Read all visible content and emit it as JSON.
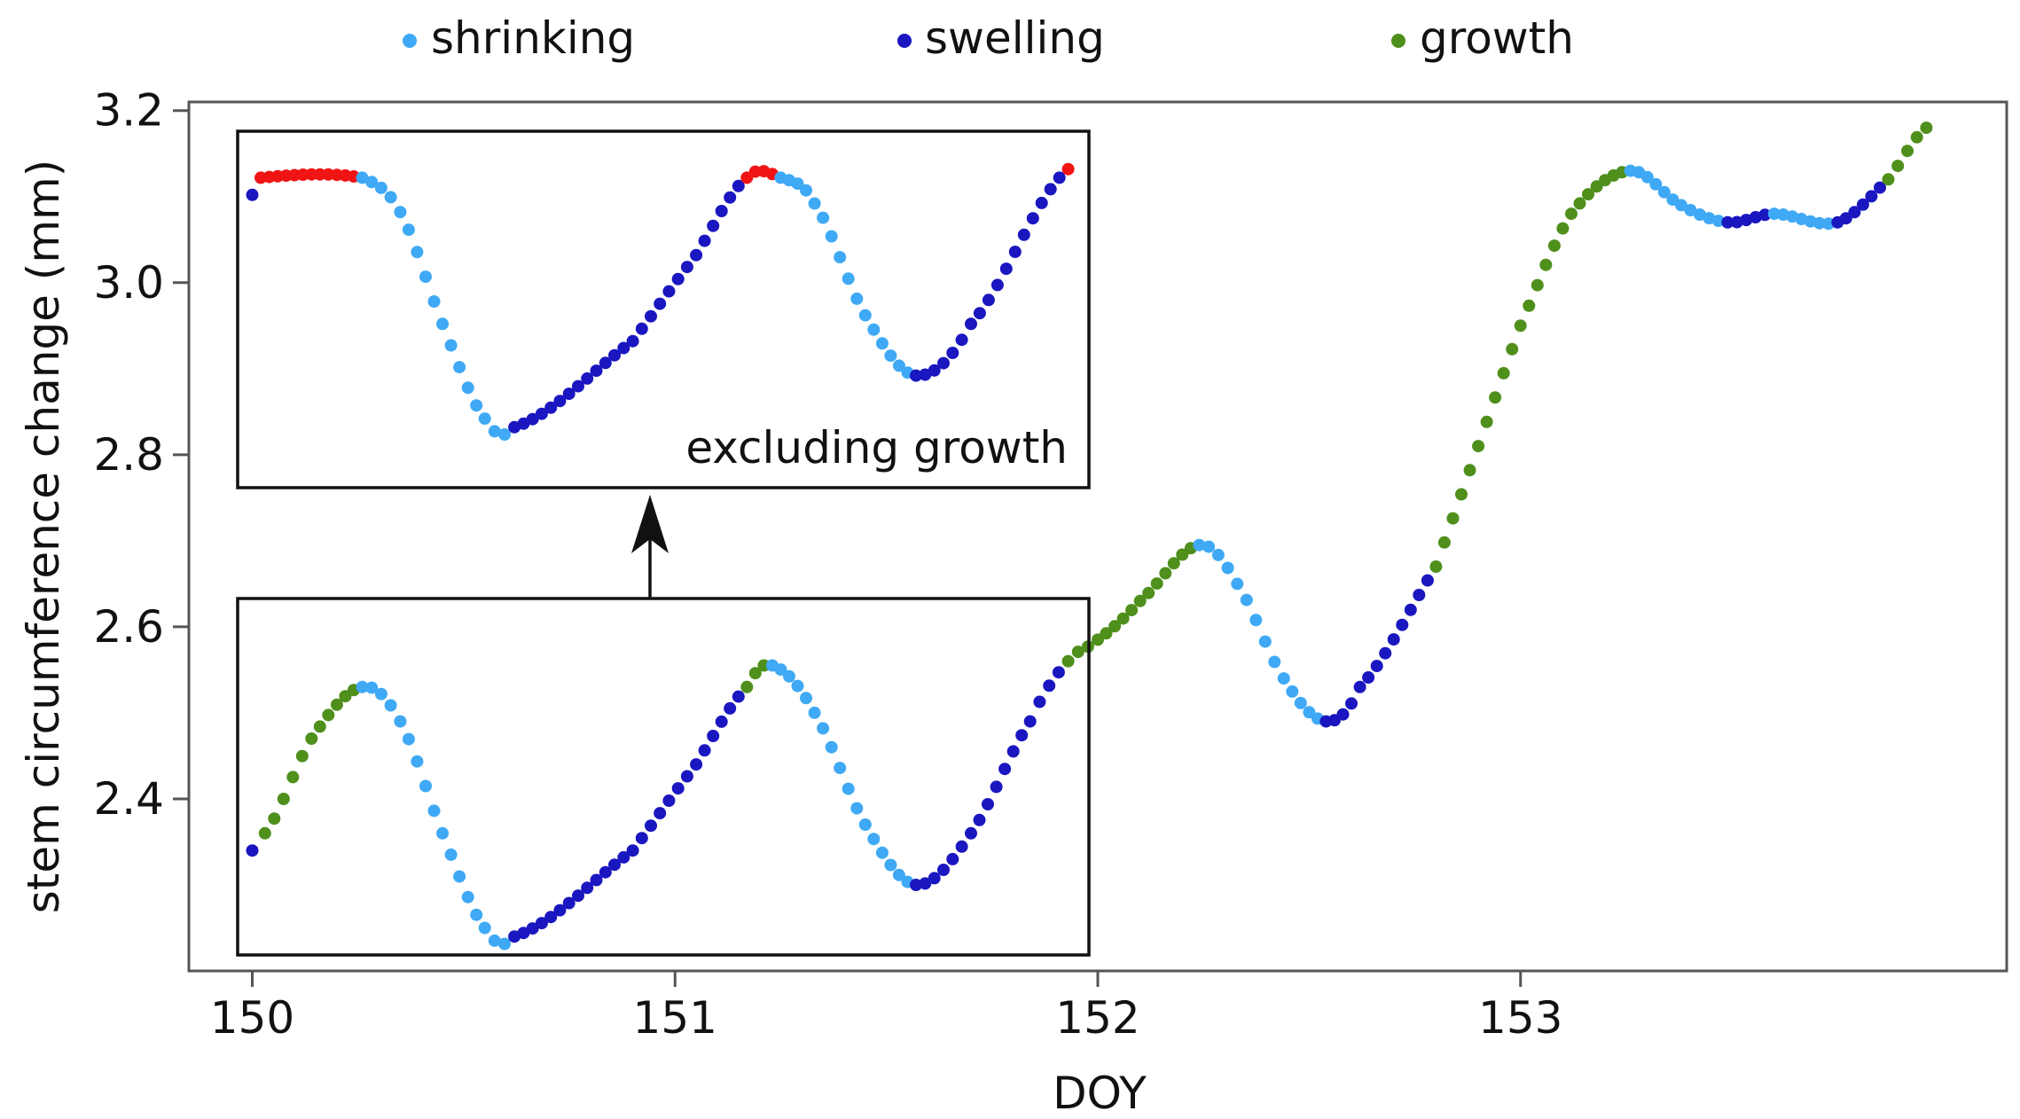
{
  "chart_data": {
    "type": "scatter",
    "title": "",
    "xlabel": "DOY",
    "ylabel": "stem circumference change (mm)",
    "xlim": [
      149.85,
      154.15
    ],
    "ylim": [
      2.2,
      3.21
    ],
    "xticks": [
      150,
      151,
      152,
      153
    ],
    "yticks": [
      2.4,
      2.6,
      2.8,
      3.0,
      3.2
    ],
    "xtick_labels": [
      "150",
      "151",
      "152",
      "153"
    ],
    "ytick_labels": [
      "2.4",
      "2.6",
      "2.8",
      "3.0",
      "3.2"
    ],
    "legend": {
      "placement": "top",
      "entries": [
        {
          "label": "shrinking",
          "color": "#3fa9f5"
        },
        {
          "label": "swelling",
          "color": "#1a16c0"
        },
        {
          "label": "growth",
          "color": "#4f8f1c"
        }
      ]
    },
    "colors": {
      "shrinking": "#3fa9f5",
      "swelling": "#1a16c0",
      "growth": "#4f8f1c",
      "excluded": "#f01414"
    },
    "main_series_keypoints": [
      {
        "x": 150.0,
        "y": 2.34,
        "phase": "swelling"
      },
      {
        "x": 150.03,
        "y": 2.36,
        "phase": "growth"
      },
      {
        "x": 150.14,
        "y": 2.47,
        "phase": "growth"
      },
      {
        "x": 150.26,
        "y": 2.53,
        "phase": "shrinking"
      },
      {
        "x": 150.35,
        "y": 2.49,
        "phase": "shrinking"
      },
      {
        "x": 150.45,
        "y": 2.36,
        "phase": "shrinking"
      },
      {
        "x": 150.55,
        "y": 2.25,
        "phase": "shrinking"
      },
      {
        "x": 150.62,
        "y": 2.24,
        "phase": "swelling"
      },
      {
        "x": 150.9,
        "y": 2.34,
        "phase": "swelling"
      },
      {
        "x": 151.05,
        "y": 2.44,
        "phase": "swelling"
      },
      {
        "x": 151.17,
        "y": 2.53,
        "phase": "growth"
      },
      {
        "x": 151.23,
        "y": 2.555,
        "phase": "shrinking"
      },
      {
        "x": 151.33,
        "y": 2.5,
        "phase": "shrinking"
      },
      {
        "x": 151.45,
        "y": 2.37,
        "phase": "shrinking"
      },
      {
        "x": 151.57,
        "y": 2.3,
        "phase": "swelling"
      },
      {
        "x": 151.7,
        "y": 2.36,
        "phase": "swelling"
      },
      {
        "x": 151.84,
        "y": 2.49,
        "phase": "swelling"
      },
      {
        "x": 151.93,
        "y": 2.56,
        "phase": "growth"
      },
      {
        "x": 152.0,
        "y": 2.585,
        "phase": "growth"
      },
      {
        "x": 152.1,
        "y": 2.63,
        "phase": "growth"
      },
      {
        "x": 152.24,
        "y": 2.695,
        "phase": "shrinking"
      },
      {
        "x": 152.33,
        "y": 2.65,
        "phase": "shrinking"
      },
      {
        "x": 152.44,
        "y": 2.54,
        "phase": "shrinking"
      },
      {
        "x": 152.54,
        "y": 2.49,
        "phase": "swelling"
      },
      {
        "x": 152.62,
        "y": 2.53,
        "phase": "swelling"
      },
      {
        "x": 152.8,
        "y": 2.67,
        "phase": "growth"
      },
      {
        "x": 152.9,
        "y": 2.81,
        "phase": "growth"
      },
      {
        "x": 153.0,
        "y": 2.95,
        "phase": "growth"
      },
      {
        "x": 153.12,
        "y": 3.08,
        "phase": "growth"
      },
      {
        "x": 153.26,
        "y": 3.13,
        "phase": "shrinking"
      },
      {
        "x": 153.38,
        "y": 3.09,
        "phase": "shrinking"
      },
      {
        "x": 153.49,
        "y": 3.07,
        "phase": "swelling"
      },
      {
        "x": 153.6,
        "y": 3.08,
        "phase": "shrinking"
      },
      {
        "x": 153.75,
        "y": 3.07,
        "phase": "swelling"
      },
      {
        "x": 153.87,
        "y": 3.12,
        "phase": "growth"
      },
      {
        "x": 153.96,
        "y": 3.18,
        "phase": "growth"
      }
    ],
    "inset": {
      "label": "excluding growth",
      "description_series": "same DOY 150-152 segment with growth removed",
      "keypoints": [
        {
          "x": 150.0,
          "y": 2.34,
          "phase": "swelling"
        },
        {
          "x": 150.02,
          "y": 2.36,
          "phase": "excluded"
        },
        {
          "x": 150.26,
          "y": 2.36,
          "phase": "shrinking"
        },
        {
          "x": 150.35,
          "y": 2.32,
          "phase": "shrinking"
        },
        {
          "x": 150.45,
          "y": 2.19,
          "phase": "shrinking"
        },
        {
          "x": 150.55,
          "y": 2.08,
          "phase": "shrinking"
        },
        {
          "x": 150.62,
          "y": 2.07,
          "phase": "swelling"
        },
        {
          "x": 150.9,
          "y": 2.17,
          "phase": "swelling"
        },
        {
          "x": 151.05,
          "y": 2.27,
          "phase": "swelling"
        },
        {
          "x": 151.17,
          "y": 2.36,
          "phase": "excluded"
        },
        {
          "x": 151.25,
          "y": 2.36,
          "phase": "shrinking"
        },
        {
          "x": 151.33,
          "y": 2.33,
          "phase": "shrinking"
        },
        {
          "x": 151.45,
          "y": 2.2,
          "phase": "shrinking"
        },
        {
          "x": 151.57,
          "y": 2.13,
          "phase": "swelling"
        },
        {
          "x": 151.7,
          "y": 2.19,
          "phase": "swelling"
        },
        {
          "x": 151.93,
          "y": 2.37,
          "phase": "excluded"
        }
      ]
    }
  }
}
